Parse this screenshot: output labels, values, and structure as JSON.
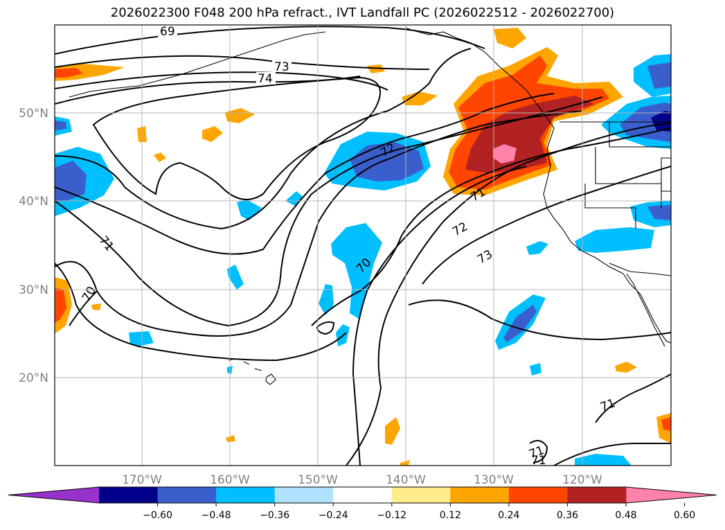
{
  "title": "2026022300 F048 200 hPa refract., IVT Landfall PC (2026022512 - 2026022700)",
  "map": {
    "projection": "PlateCarree",
    "lon_range": [
      -180,
      -110
    ],
    "lat_range": [
      10,
      60
    ],
    "gridlines": true,
    "lon_ticks": [
      "170°W",
      "160°W",
      "150°W",
      "140°W",
      "130°W",
      "120°W"
    ],
    "lat_ticks": [
      "50°N",
      "40°N",
      "30°N",
      "20°N"
    ],
    "contour_labels": [
      "69",
      "73",
      "74",
      "72",
      "71",
      "72",
      "71",
      "70",
      "73",
      "71",
      "70",
      "71",
      "71"
    ],
    "contour_color": "#000000"
  },
  "colorbar": {
    "orientation": "horizontal",
    "extend": "both",
    "ticks": [
      "−0.60",
      "−0.48",
      "−0.36",
      "−0.24",
      "−0.12",
      "0.12",
      "0.24",
      "0.36",
      "0.48",
      "0.60"
    ],
    "colors": [
      "#9932CC",
      "#00008B",
      "#3A5FCD",
      "#00BFFF",
      "#B0E2FF",
      "#FFFFFF",
      "#FFEC8B",
      "#FFA500",
      "#FF4500",
      "#B22222",
      "#FF82AB"
    ]
  }
}
